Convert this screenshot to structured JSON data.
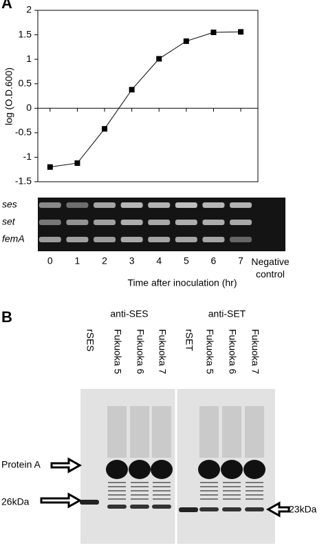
{
  "panel_labels": [
    "A",
    "B"
  ],
  "chart_data": {
    "type": "line",
    "y_label": "log (O.D.600)",
    "x_label": "Time after inoculation (hr)",
    "x": [
      0,
      1,
      2,
      3,
      4,
      5,
      6,
      7
    ],
    "series": [
      {
        "color": "#000000",
        "values": [
          -1.2,
          -1.12,
          -0.42,
          0.38,
          1.01,
          1.37,
          1.55,
          1.56
        ]
      }
    ],
    "xlim": [
      -0.45,
      7.63
    ],
    "xticks": [
      0,
      1,
      2,
      3,
      4,
      5,
      6,
      7
    ],
    "ylim": [
      -1.5,
      2
    ],
    "yticks": [
      -1.5,
      -1,
      -0.5,
      0,
      0.5,
      1,
      1.5,
      2
    ]
  },
  "gel": {
    "row_labels": [
      "ses",
      "set",
      "femA"
    ],
    "negative_control": "Negative control"
  },
  "blot": {
    "groups": [
      {
        "label": "anti-SES",
        "lanes": [
          "rSES",
          "Fukuoka 5",
          "Fukuoka 6",
          "Fukuoka 7"
        ]
      },
      {
        "label": "anti-SET",
        "lanes": [
          "rSET",
          "Fukuoka 5",
          "Fukuoka 6",
          "Fukuoka 7"
        ]
      }
    ],
    "markers": [
      "Protein A",
      "26kDa",
      "23kDa"
    ]
  }
}
